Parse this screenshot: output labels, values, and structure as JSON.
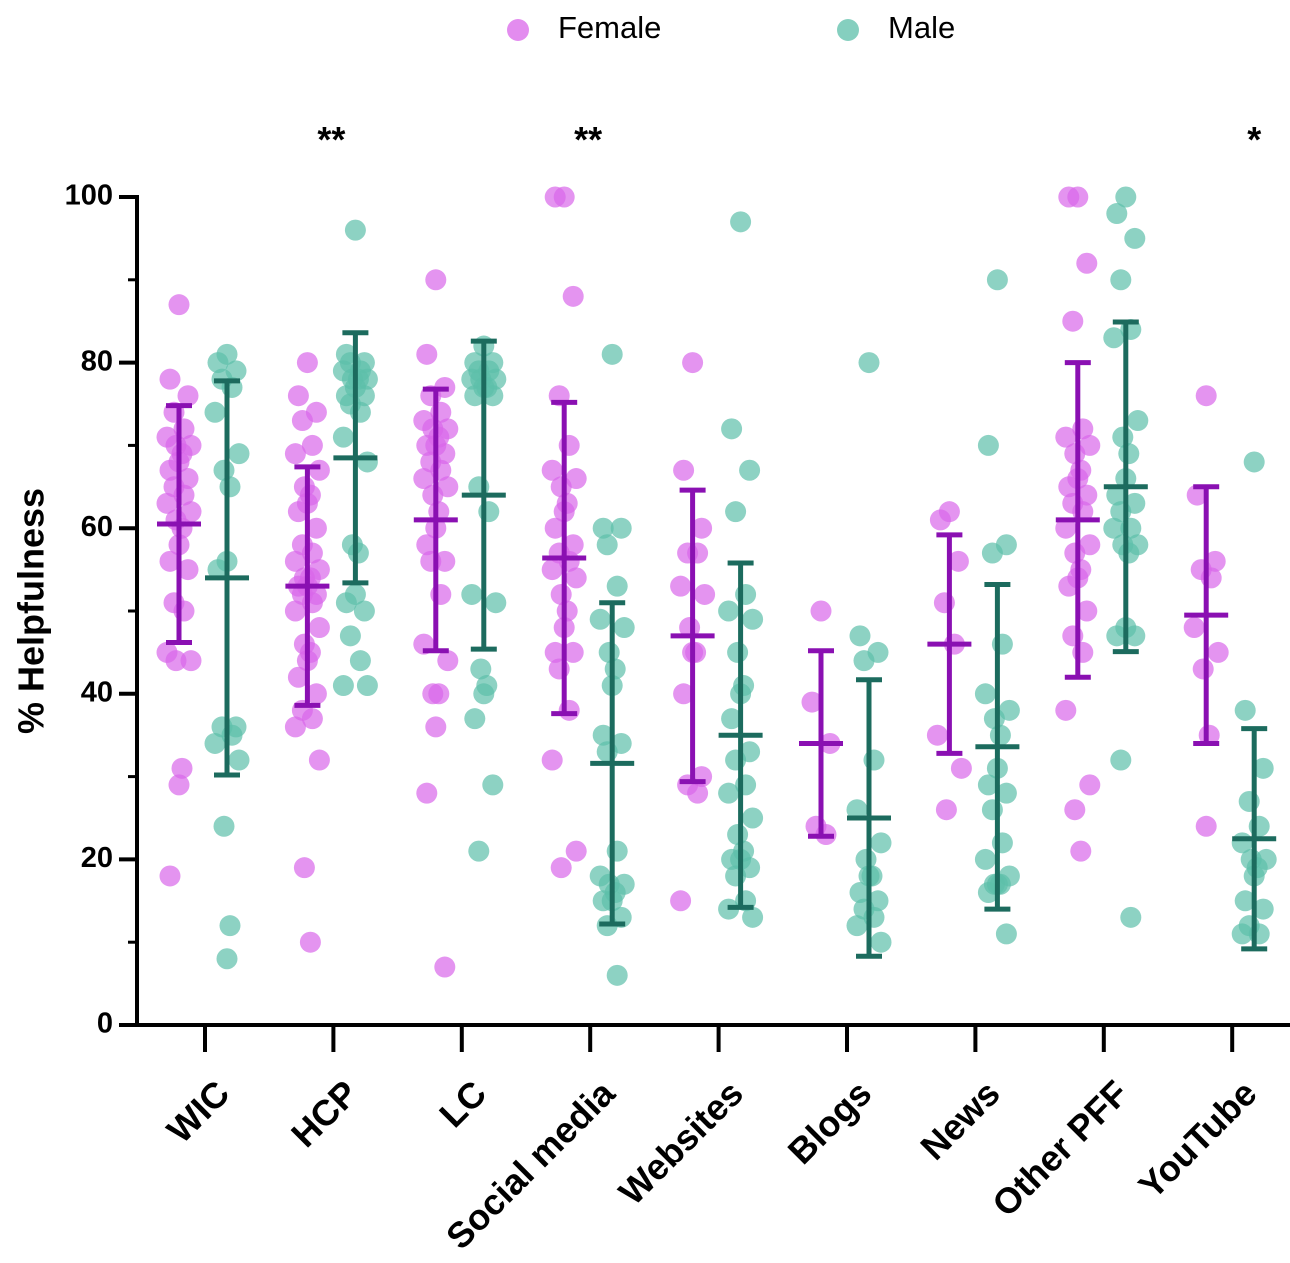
{
  "chart_data": {
    "type": "dot",
    "y_label": "% Helpfulness",
    "categories": [
      "WIC",
      "HCP",
      "LC",
      "Social media",
      "Websites",
      "Blogs",
      "News",
      "Other PFF",
      "YouTube"
    ],
    "significance": [
      null,
      "**",
      null,
      "**",
      null,
      null,
      null,
      null,
      "*"
    ],
    "ylim": [
      0,
      100
    ],
    "yticks": [
      0,
      20,
      40,
      60,
      80,
      100
    ],
    "yminorticks": [
      10,
      30,
      50,
      70,
      90
    ],
    "legend": "top",
    "series": [
      {
        "name": "Female",
        "color": "#d966ea",
        "error_color": "#8a10b2",
        "mean": [
          60.5,
          53,
          61,
          56.4,
          47,
          34,
          46,
          61,
          49.5
        ],
        "sd": [
          14.3,
          14.4,
          15.8,
          18.8,
          17.6,
          11.2,
          13.2,
          19,
          15.5
        ],
        "points": [
          [
            87,
            78,
            76,
            74,
            72,
            71,
            70,
            70,
            69,
            68,
            67,
            66,
            65,
            64,
            63,
            62,
            61,
            60,
            58,
            56,
            55,
            51,
            50,
            45,
            44,
            44,
            31,
            29,
            18
          ],
          [
            80,
            76,
            74,
            73,
            70,
            69,
            67,
            65,
            64,
            63,
            62,
            60,
            58,
            57,
            56,
            55,
            54,
            54,
            53,
            53,
            52,
            52,
            51,
            50,
            48,
            46,
            45,
            44,
            42,
            40,
            38,
            37,
            36,
            32,
            19,
            10
          ],
          [
            90,
            81,
            77,
            76,
            74,
            73,
            72,
            72,
            71,
            70,
            70,
            69,
            68,
            67,
            66,
            65,
            64,
            62,
            60,
            58,
            56,
            56,
            52,
            46,
            44,
            40,
            40,
            36,
            28,
            7
          ],
          [
            100,
            100,
            88,
            76,
            70,
            67,
            66,
            65,
            63,
            62,
            60,
            58,
            57,
            56,
            55,
            54,
            52,
            50,
            48,
            45,
            45,
            43,
            38,
            32,
            21,
            19
          ],
          [
            80,
            67,
            60,
            57,
            57,
            53,
            52,
            48,
            45,
            45,
            40,
            30,
            29,
            28,
            15
          ],
          [
            50,
            39,
            34,
            24,
            23
          ],
          [
            62,
            61,
            56,
            51,
            46,
            35,
            31,
            26
          ],
          [
            100,
            100,
            92,
            85,
            72,
            71,
            70,
            69,
            67,
            66,
            65,
            64,
            63,
            62,
            60,
            58,
            57,
            55,
            54,
            53,
            50,
            47,
            45,
            38,
            29,
            26,
            21
          ],
          [
            76,
            64,
            56,
            55,
            54,
            48,
            45,
            43,
            35,
            24
          ]
        ]
      },
      {
        "name": "Male",
        "color": "#5cbfa9",
        "error_color": "#1c6b5e",
        "mean": [
          54,
          68.5,
          64,
          31.6,
          35,
          25,
          33.6,
          65,
          22.5
        ],
        "sd": [
          23.8,
          15.1,
          18.6,
          19.4,
          20.8,
          16.7,
          19.6,
          19.9,
          13.3
        ],
        "points": [
          [
            81,
            80,
            79,
            78,
            77,
            74,
            69,
            67,
            65,
            56,
            55,
            36,
            36,
            35,
            34,
            32,
            24,
            12,
            8
          ],
          [
            96,
            81,
            80,
            80,
            79,
            79,
            78,
            78,
            78,
            77,
            76,
            76,
            75,
            74,
            71,
            68,
            58,
            57,
            52,
            51,
            50,
            47,
            44,
            41,
            41
          ],
          [
            82,
            80,
            80,
            79,
            79,
            78,
            78,
            78,
            77,
            77,
            76,
            76,
            65,
            62,
            52,
            51,
            43,
            41,
            40,
            37,
            29,
            21
          ],
          [
            81,
            60,
            60,
            58,
            53,
            49,
            48,
            45,
            43,
            41,
            35,
            34,
            33,
            21,
            18,
            17,
            17,
            16,
            15,
            15,
            13,
            12,
            6
          ],
          [
            97,
            72,
            67,
            62,
            52,
            50,
            49,
            45,
            41,
            40,
            37,
            33,
            32,
            29,
            28,
            25,
            23,
            21,
            20,
            20,
            19,
            18,
            15,
            14,
            13
          ],
          [
            80,
            47,
            45,
            44,
            32,
            26,
            22,
            20,
            18,
            18,
            16,
            15,
            14,
            13,
            12,
            10
          ],
          [
            90,
            70,
            58,
            57,
            46,
            40,
            38,
            37,
            35,
            31,
            29,
            28,
            26,
            22,
            20,
            18,
            17,
            17,
            17,
            16,
            11
          ],
          [
            100,
            98,
            95,
            90,
            84,
            83,
            73,
            71,
            69,
            66,
            64,
            63,
            62,
            60,
            60,
            58,
            58,
            57,
            48,
            47,
            47,
            32,
            13
          ],
          [
            68,
            38,
            31,
            27,
            24,
            22,
            20,
            20,
            19,
            18,
            15,
            14,
            12,
            11,
            11
          ]
        ]
      }
    ]
  }
}
